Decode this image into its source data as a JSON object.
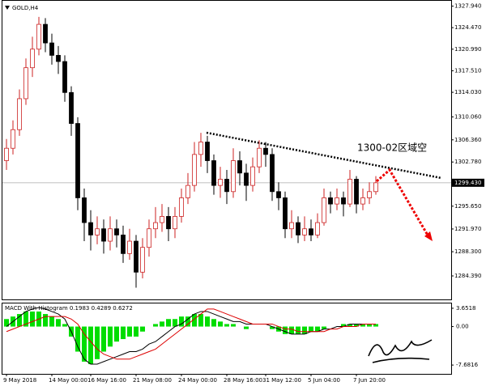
{
  "chart_data": {
    "type": "candlestick",
    "symbol": "GOLD,H4",
    "annotation": "1300-02区域空",
    "up_color": "#cc2222",
    "down_color": "#000000",
    "grid": false,
    "categories": [
      "9 May 2018",
      null,
      null,
      null,
      null,
      null,
      null,
      "14 May 00:00",
      null,
      null,
      null,
      null,
      null,
      "16 May 16:00",
      null,
      null,
      null,
      null,
      null,
      null,
      "21 May 08:00",
      null,
      null,
      null,
      null,
      null,
      null,
      "24 May 00:00",
      null,
      null,
      null,
      null,
      null,
      null,
      "28 May 16:00",
      null,
      null,
      null,
      null,
      null,
      "31 May 12:00",
      null,
      null,
      null,
      null,
      null,
      null,
      "5 Jun 04:00",
      null,
      null,
      null,
      null,
      null,
      null,
      "7 Jun 20:00",
      null,
      null,
      null
    ],
    "open": [
      1303,
      1305,
      1308,
      1313,
      1318,
      1321,
      1325,
      1322,
      1320,
      1319,
      1314,
      1309,
      1297,
      1293,
      1291,
      1292,
      1290,
      1292,
      1291,
      1288,
      1290,
      1285,
      1289,
      1292,
      1293,
      1294,
      1292,
      1294,
      1297,
      1299,
      1304,
      1306,
      1303,
      1299,
      1300,
      1298,
      1303,
      1301,
      1299,
      1302,
      1305,
      1304,
      1298,
      1297,
      1292,
      1293,
      1291,
      1292,
      1291,
      1293,
      1297,
      1296,
      1297,
      1296,
      1300,
      1296,
      1297,
      1298
    ],
    "high": [
      1306.5,
      1309.5,
      1314.5,
      1319.5,
      1323,
      1326.2,
      1326,
      1323.5,
      1321.5,
      1320,
      1315,
      1310,
      1298.5,
      1295,
      1294,
      1293.5,
      1294,
      1293.5,
      1292.5,
      1292,
      1291,
      1290.5,
      1293.5,
      1295.5,
      1296,
      1295.5,
      1295.5,
      1298.5,
      1301,
      1306,
      1307.5,
      1307,
      1304,
      1302,
      1301.5,
      1305,
      1304.5,
      1302.5,
      1303.5,
      1306.3,
      1306,
      1305,
      1299.5,
      1298,
      1295,
      1294,
      1294,
      1293.5,
      1294.5,
      1298.5,
      1298,
      1298.5,
      1298,
      1301.5,
      1300.5,
      1298.5,
      1299.5,
      1300.5
    ],
    "low": [
      1301.5,
      1304,
      1307,
      1312,
      1316.5,
      1320,
      1320.5,
      1318.5,
      1317,
      1312.5,
      1307,
      1295,
      1290,
      1288.5,
      1289.5,
      1288,
      1288.5,
      1289,
      1286.5,
      1287,
      1282.5,
      1284,
      1287.5,
      1290.5,
      1291.5,
      1290,
      1290.5,
      1293,
      1296,
      1298,
      1302,
      1301,
      1297.5,
      1297,
      1296,
      1297,
      1299,
      1296.5,
      1298,
      1301,
      1302,
      1296.5,
      1295,
      1290.5,
      1290.5,
      1289.7,
      1290,
      1290,
      1290.5,
      1292.5,
      1294.5,
      1295,
      1294,
      1295.5,
      1294.5,
      1295,
      1296,
      1297.5
    ],
    "close": [
      1305,
      1308,
      1313,
      1318,
      1321,
      1325,
      1322,
      1320,
      1319,
      1314,
      1309,
      1297,
      1293,
      1291,
      1292,
      1290,
      1292,
      1291,
      1288,
      1290,
      1285,
      1289,
      1292,
      1293,
      1294,
      1292,
      1294,
      1297,
      1299,
      1304,
      1306,
      1303,
      1299,
      1300,
      1298,
      1303,
      1301,
      1299,
      1302,
      1305,
      1304,
      1298,
      1297,
      1292,
      1293,
      1291,
      1292,
      1291,
      1293,
      1297,
      1296,
      1297,
      1296,
      1300,
      1296,
      1297,
      1298,
      1299.43
    ],
    "ylim": [
      1280.6,
      1328.8
    ],
    "yticks": [
      {
        "value": 1327.94,
        "label": "1327.940"
      },
      {
        "value": 1324.47,
        "label": "1324.470"
      },
      {
        "value": 1320.99,
        "label": "1320.990"
      },
      {
        "value": 1317.51,
        "label": "1317.510"
      },
      {
        "value": 1314.03,
        "label": "1314.030"
      },
      {
        "value": 1310.06,
        "label": "1310.060"
      },
      {
        "value": 1306.36,
        "label": "1306.360"
      },
      {
        "value": 1302.78,
        "label": "1302.780"
      },
      {
        "value": 1295.65,
        "label": "1295.650"
      },
      {
        "value": 1291.97,
        "label": "1291.970"
      },
      {
        "value": 1288.3,
        "label": "1288.300"
      },
      {
        "value": 1284.39,
        "label": "1284.390"
      }
    ],
    "last_price": {
      "value": 1299.43,
      "label": "1299.430"
    },
    "macd": {
      "label": "MACD With Histogram 0.1983 0.4289 0.6272",
      "ylim": [
        -9.44,
        4.61
      ],
      "yticks": [
        3.6518,
        {
          "value": 0,
          "label": "0.00"
        },
        -7.6816
      ],
      "histogram": {
        "color": "#00dd00",
        "values": [
          1.5,
          2,
          2.5,
          3,
          3,
          3,
          2.5,
          2,
          1.5,
          0.5,
          -2,
          -5,
          -7,
          -7.5,
          -6.5,
          -5,
          -4,
          -3,
          -2.5,
          -2,
          -2,
          -1,
          0,
          0.5,
          1,
          1.5,
          1.5,
          2,
          2,
          2.5,
          2.5,
          2,
          1.5,
          1,
          0.5,
          0.5,
          0,
          -0.5,
          0,
          0,
          0,
          -0.5,
          -1,
          -1.5,
          -1.5,
          -1.5,
          -1.5,
          -1,
          -1,
          -0.5,
          0,
          0,
          0.5,
          0.5,
          0.5,
          0.5,
          0.5,
          0.5
        ]
      },
      "macd_line": {
        "color": "#000000",
        "values": [
          0,
          1,
          2,
          3,
          3.5,
          3.8,
          3.5,
          3,
          2.5,
          1.5,
          -1,
          -4,
          -6.5,
          -7.5,
          -7.5,
          -7,
          -6.5,
          -6,
          -5.5,
          -5,
          -5,
          -4.5,
          -3.5,
          -3,
          -2,
          -1,
          0,
          0.5,
          1.5,
          2.5,
          3,
          3,
          2.5,
          2,
          1.5,
          1,
          1,
          0.5,
          0.5,
          0.5,
          0.5,
          0,
          -0.5,
          -1,
          -1.5,
          -1.5,
          -1.5,
          -1,
          -1,
          -0.5,
          -0.5,
          0,
          0,
          0.5,
          0.5,
          0.5,
          0.5,
          0.5
        ]
      },
      "signal_line": {
        "color": "#dd0000",
        "values": [
          -1,
          -0.5,
          0,
          0.5,
          1,
          1.5,
          2,
          2,
          2,
          2,
          1.5,
          0.5,
          -1.5,
          -3,
          -4.5,
          -5.5,
          -6,
          -6.5,
          -6.5,
          -6.5,
          -6,
          -5.5,
          -5,
          -4.5,
          -3.5,
          -2.5,
          -1.5,
          -0.5,
          0.5,
          1.5,
          2.5,
          3.5,
          3.5,
          3,
          2.5,
          2,
          1.5,
          1,
          0.5,
          0.5,
          0.5,
          0.5,
          0,
          -0.5,
          -0.5,
          -1,
          -1,
          -1,
          -1,
          -1,
          -0.5,
          -0.5,
          0,
          0,
          0,
          0.5,
          0.5,
          0.5
        ]
      }
    }
  }
}
